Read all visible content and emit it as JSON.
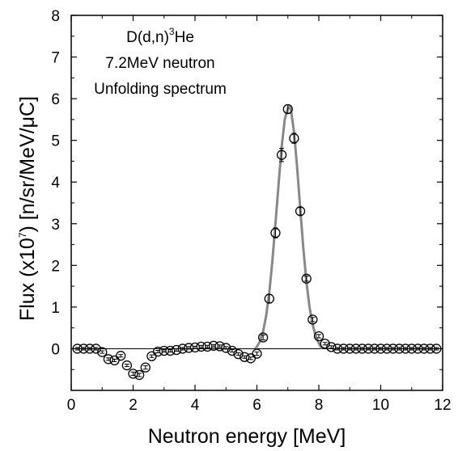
{
  "chart_data": {
    "type": "scatter",
    "title": "",
    "xlabel": "Neutron energy [MeV]",
    "ylabel": "Flux (x10⁷) [n/sr/MeV/μC]",
    "ylabel_parts": {
      "pre": "Flux (x10",
      "sup": "7",
      "post": ") [n/sr/MeV/μC]"
    },
    "xlim": [
      0,
      12
    ],
    "ylim": [
      -1,
      8
    ],
    "xticks": [
      0,
      2,
      4,
      6,
      8,
      10,
      12
    ],
    "yticks": [
      0,
      1,
      2,
      3,
      4,
      5,
      6,
      7,
      8
    ],
    "annotation": {
      "line1_pre": "D(d,n)",
      "line1_sup": "3",
      "line1_post": "He",
      "line2": "7.2MeV neutron",
      "line3": "Unfolding spectrum"
    },
    "zero_line": 0,
    "series": [
      {
        "marker": "open-circle",
        "error_bars": true,
        "x": [
          0.2,
          0.4,
          0.6,
          0.8,
          1.0,
          1.2,
          1.4,
          1.6,
          1.8,
          2.0,
          2.2,
          2.4,
          2.6,
          2.8,
          3.0,
          3.2,
          3.4,
          3.6,
          3.8,
          4.0,
          4.2,
          4.4,
          4.6,
          4.8,
          5.0,
          5.2,
          5.4,
          5.6,
          5.8,
          6.0,
          6.2,
          6.4,
          6.6,
          6.8,
          7.0,
          7.2,
          7.4,
          7.6,
          7.8,
          8.0,
          8.2,
          8.4,
          8.6,
          8.8,
          9.0,
          9.2,
          9.4,
          9.6,
          9.8,
          10.0,
          10.2,
          10.4,
          10.6,
          10.8,
          11.0,
          11.2,
          11.4,
          11.6,
          11.8
        ],
        "y": [
          0.0,
          0.0,
          0.0,
          0.0,
          -0.08,
          -0.25,
          -0.28,
          -0.17,
          -0.4,
          -0.6,
          -0.63,
          -0.45,
          -0.18,
          -0.07,
          -0.05,
          -0.05,
          -0.03,
          0.0,
          0.02,
          0.03,
          0.05,
          0.05,
          0.07,
          0.06,
          0.02,
          -0.05,
          -0.13,
          -0.2,
          -0.23,
          -0.12,
          0.27,
          1.2,
          2.78,
          4.65,
          5.75,
          5.05,
          3.3,
          1.68,
          0.7,
          0.3,
          0.12,
          0.04,
          0.0,
          0.0,
          0.0,
          0.0,
          0.0,
          0.0,
          0.0,
          0.0,
          0.0,
          0.0,
          0.0,
          0.0,
          0.0,
          0.0,
          0.0,
          0.0,
          0.0
        ],
        "err": [
          0.03,
          0.03,
          0.03,
          0.03,
          0.03,
          0.03,
          0.03,
          0.03,
          0.03,
          0.04,
          0.04,
          0.04,
          0.03,
          0.03,
          0.03,
          0.03,
          0.03,
          0.03,
          0.03,
          0.03,
          0.03,
          0.03,
          0.03,
          0.03,
          0.03,
          0.03,
          0.03,
          0.03,
          0.03,
          0.04,
          0.06,
          0.1,
          0.12,
          0.16,
          0.1,
          0.12,
          0.09,
          0.06,
          0.05,
          0.04,
          0.03,
          0.03,
          0.03,
          0.03,
          0.03,
          0.03,
          0.03,
          0.03,
          0.03,
          0.03,
          0.03,
          0.03,
          0.03,
          0.03,
          0.03,
          0.03,
          0.03,
          0.03,
          0.03
        ]
      },
      {
        "marker": "line",
        "x": [
          5.95,
          6.0,
          6.1,
          6.2,
          6.3,
          6.4,
          6.5,
          6.6,
          6.7,
          6.8,
          6.9,
          7.0,
          7.05,
          7.1,
          7.2,
          7.3,
          7.4,
          7.5,
          7.6,
          7.7,
          7.8,
          7.9,
          8.0,
          8.1
        ],
        "y": [
          0.0,
          0.05,
          0.18,
          0.42,
          0.8,
          1.35,
          2.1,
          3.0,
          3.95,
          4.85,
          5.5,
          5.78,
          5.8,
          5.72,
          5.2,
          4.35,
          3.35,
          2.4,
          1.6,
          1.0,
          0.58,
          0.3,
          0.13,
          0.0
        ]
      }
    ],
    "colors": {
      "markers": "#000000",
      "fit_line": "#888888",
      "axes": "#000000"
    }
  }
}
